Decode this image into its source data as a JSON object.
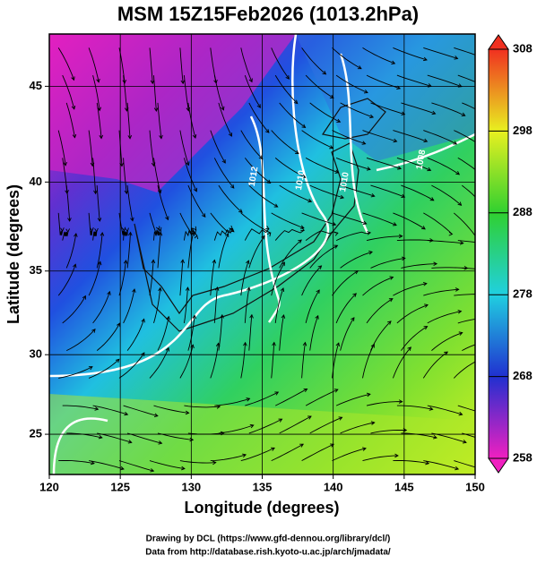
{
  "chart_data": {
    "type": "map",
    "title": "MSM 15Z15Feb2026 (1013.2hPa)",
    "x_label": "Longitude (degrees)",
    "y_label": "Latitude  (degrees)",
    "projection": "mercator",
    "xlim": [
      120,
      150
    ],
    "xticks": [
      120,
      125,
      130,
      135,
      140,
      145,
      150
    ],
    "ylim": [
      22.39,
      47.56
    ],
    "yticks": [
      25,
      30,
      35,
      40,
      45
    ],
    "grid": true,
    "contour_labels": [
      {
        "label": "1012",
        "x": 134.4,
        "y": 40.3
      },
      {
        "label": "1010",
        "x": 137.7,
        "y": 40.1
      },
      {
        "label": "1010",
        "x": 140.8,
        "y": 40.0
      },
      {
        "label": "1008",
        "x": 146.2,
        "y": 41.2
      }
    ],
    "colorbar": {
      "lim": [
        258,
        308
      ],
      "ticks": [
        258,
        268,
        278,
        288,
        298,
        308
      ],
      "colors": [
        "#f020c0",
        "#2030d0",
        "#20d0e0",
        "#30d030",
        "#e8f020",
        "#f03020"
      ]
    },
    "footer": [
      "Drawing by DCL (https://www.gfd-dennou.org/library/dcl/)",
      "Data from http://database.rish.kyoto-u.ac.jp/arch/jmadata/"
    ]
  }
}
